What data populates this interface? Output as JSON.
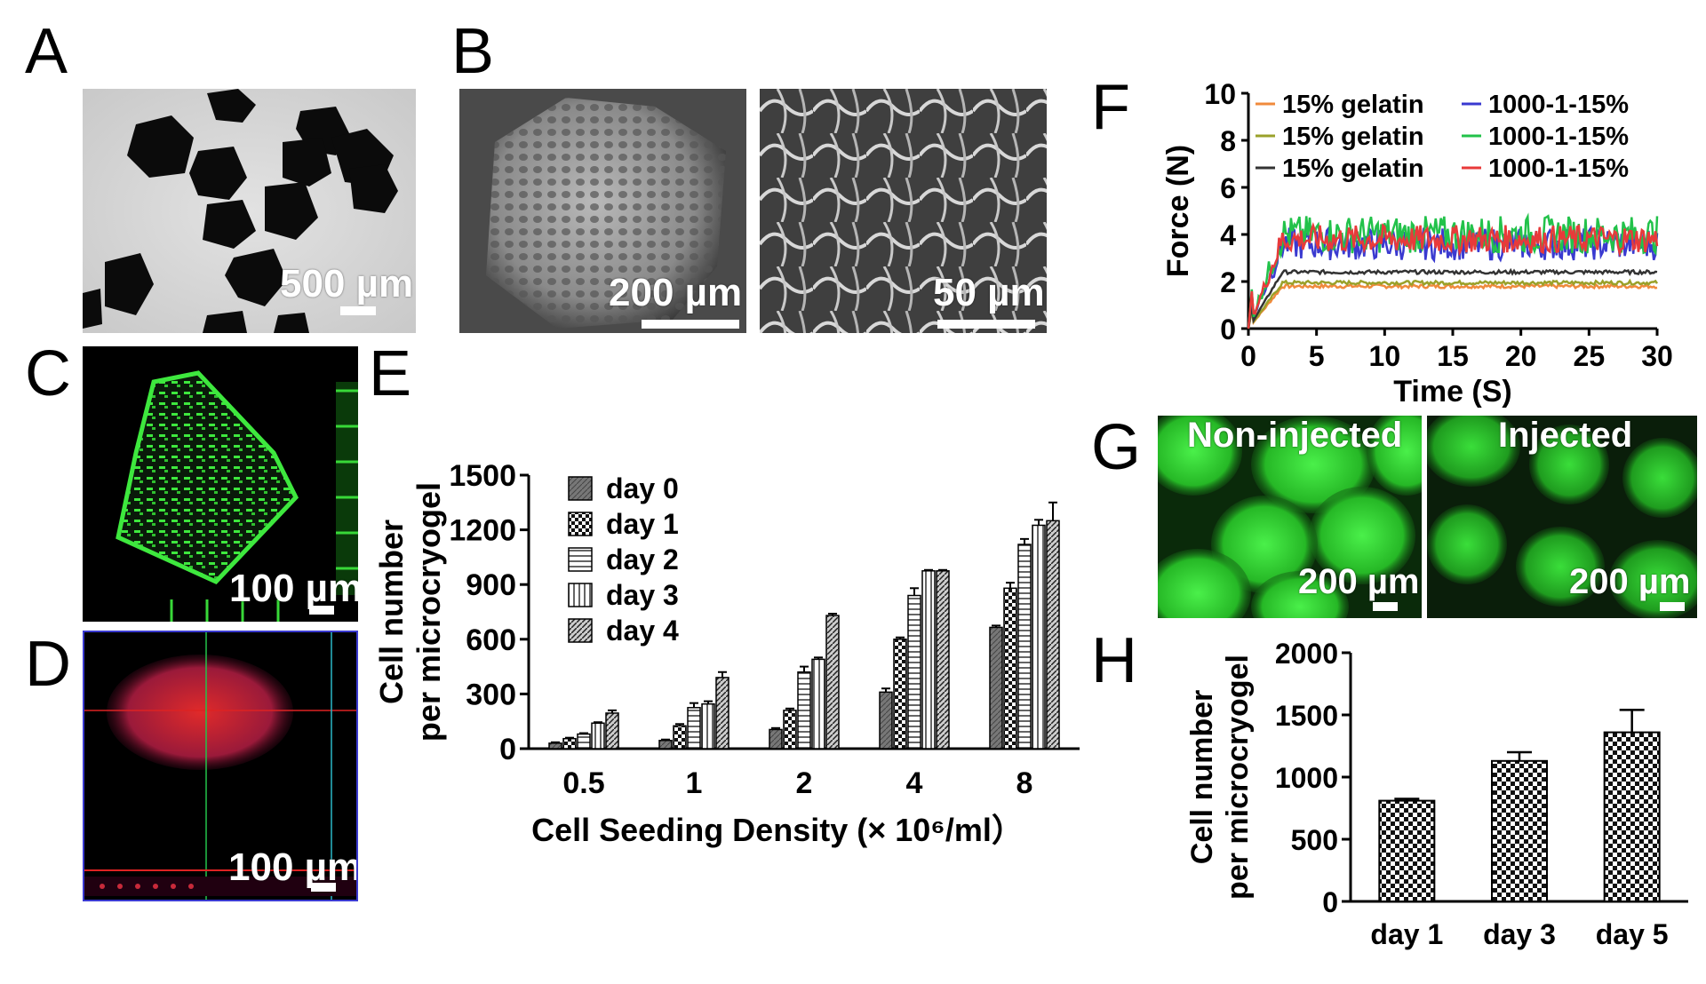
{
  "panels": {
    "A": {
      "letter": "A",
      "scale": "500 µm"
    },
    "B": {
      "letter": "B",
      "scale_left": "200 µm",
      "scale_right": "50 µm"
    },
    "C": {
      "letter": "C",
      "scale": "100 µm"
    },
    "D": {
      "letter": "D",
      "scale": "100 µm"
    },
    "E": {
      "letter": "E"
    },
    "F": {
      "letter": "F"
    },
    "G": {
      "letter": "G",
      "label_left": "Non-injected",
      "label_right": "Injected",
      "scale_left": "200 µm",
      "scale_right": "200 µm"
    },
    "H": {
      "letter": "H"
    }
  },
  "colors": {
    "orange": "#f08a3c",
    "olive": "#9aa12a",
    "dark": "#333333",
    "blue": "#3a3ad0",
    "green": "#22c24a",
    "red": "#e83a3a",
    "fluor_green": "#2fd82f"
  },
  "chart_data": [
    {
      "panel": "E",
      "type": "bar",
      "xlabel": "Cell Seeding Density (× 10⁶/ml）",
      "ylabel_line1": "Cell number",
      "ylabel_line2": "per microcryogel",
      "ylim": [
        0,
        1500
      ],
      "yticks": [
        "0",
        "300",
        "600",
        "900",
        "1200",
        "1500"
      ],
      "categories": [
        "0.5",
        "1",
        "2",
        "4",
        "8"
      ],
      "legend_position": "top-left",
      "series": [
        {
          "name": "day 0",
          "values": [
            30,
            45,
            105,
            310,
            665
          ],
          "errors": [
            5,
            5,
            8,
            20,
            10
          ]
        },
        {
          "name": "day 1",
          "values": [
            55,
            125,
            210,
            600,
            880
          ],
          "errors": [
            5,
            10,
            10,
            10,
            30
          ]
        },
        {
          "name": "day 2",
          "values": [
            80,
            225,
            420,
            840,
            1120
          ],
          "errors": [
            5,
            25,
            30,
            40,
            30
          ]
        },
        {
          "name": "day 3",
          "values": [
            140,
            245,
            490,
            975,
            1225
          ],
          "errors": [
            5,
            15,
            10,
            5,
            30
          ]
        },
        {
          "name": "day 4",
          "values": [
            195,
            390,
            730,
            975,
            1250
          ],
          "errors": [
            15,
            30,
            10,
            5,
            100
          ]
        }
      ]
    },
    {
      "panel": "F",
      "type": "line",
      "xlabel": "Time (S)",
      "ylabel": "Force (N)",
      "xlim": [
        0,
        30
      ],
      "ylim": [
        0,
        10
      ],
      "xticks": [
        "0",
        "5",
        "10",
        "15",
        "20",
        "25",
        "30"
      ],
      "yticks": [
        "0",
        "2",
        "4",
        "6",
        "8",
        "10"
      ],
      "legend_position": "top",
      "series": [
        {
          "name": "15% gelatin",
          "color": "#f08a3c",
          "baseline": 1.8,
          "noise": 0.08
        },
        {
          "name": "15% gelatin",
          "color": "#9aa12a",
          "baseline": 1.95,
          "noise": 0.08
        },
        {
          "name": "15% gelatin",
          "color": "#333333",
          "baseline": 2.4,
          "noise": 0.08
        },
        {
          "name": "1000-1-15%",
          "color": "#3a3ad0",
          "baseline": 3.6,
          "noise": 0.7
        },
        {
          "name": "1000-1-15%",
          "color": "#22c24a",
          "baseline": 4.0,
          "noise": 0.8
        },
        {
          "name": "1000-1-15%",
          "color": "#e83a3a",
          "baseline": 3.8,
          "noise": 0.6
        }
      ]
    },
    {
      "panel": "H",
      "type": "bar",
      "ylabel_line1": "Cell number",
      "ylabel_line2": "per microcryogel",
      "ylim": [
        0,
        2000
      ],
      "yticks": [
        "0",
        "500",
        "1000",
        "1500",
        "2000"
      ],
      "categories": [
        "day 1",
        "day 3",
        "day 5"
      ],
      "values": [
        810,
        1130,
        1360
      ],
      "errors": [
        15,
        70,
        180
      ]
    }
  ]
}
